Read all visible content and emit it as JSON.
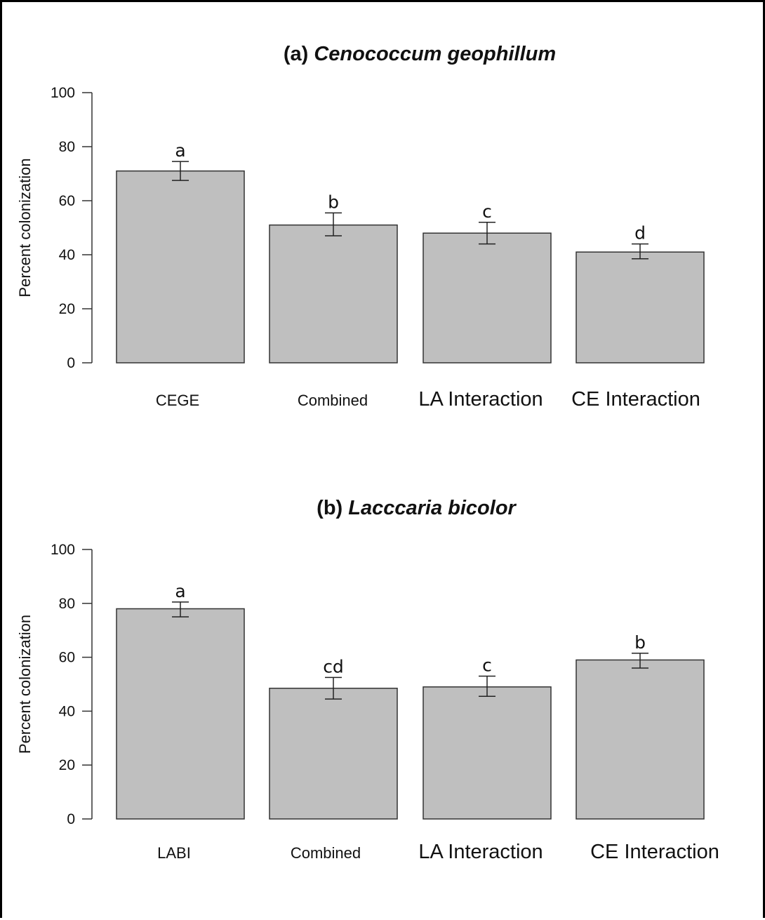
{
  "chart_data": [
    {
      "type": "bar",
      "title_prefix": "(a)",
      "title_species": "Cenococcum geophillum",
      "ylabel": "Percent colonization",
      "ylim": [
        0,
        100
      ],
      "yticks": [
        0,
        20,
        40,
        60,
        80,
        100
      ],
      "categories": [
        "CEGE",
        "Combined",
        "LA Interaction",
        "CE Interaction"
      ],
      "values": [
        71,
        51,
        48,
        41
      ],
      "error_low": [
        67.5,
        47,
        44,
        38.5
      ],
      "error_high": [
        74.5,
        55.5,
        52,
        44
      ],
      "letters": [
        "a",
        "b",
        "c",
        "d"
      ]
    },
    {
      "type": "bar",
      "title_prefix": "(b)",
      "title_species": "Lacccaria bicolor",
      "ylabel": "Percent colonization",
      "ylim": [
        0,
        100
      ],
      "yticks": [
        0,
        20,
        40,
        60,
        80,
        100
      ],
      "categories": [
        "LABI",
        "Combined",
        "LA Interaction",
        "CE Interaction"
      ],
      "values": [
        78,
        48.5,
        49,
        59
      ],
      "error_low": [
        75,
        44.5,
        45.5,
        56
      ],
      "error_high": [
        80.5,
        52.5,
        53,
        61.5
      ],
      "letters": [
        "a",
        "cd",
        "c",
        "b"
      ]
    }
  ]
}
